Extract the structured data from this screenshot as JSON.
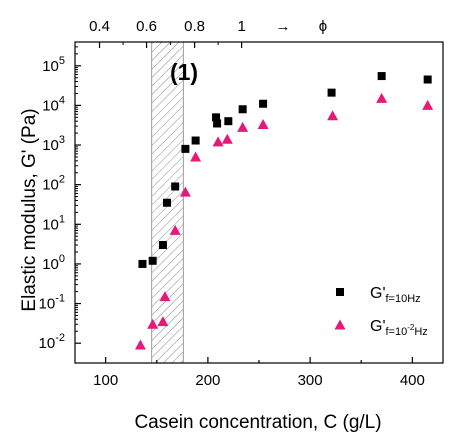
{
  "chart_data": {
    "type": "scatter",
    "xlabel": "Casein concentration, C (g/L)",
    "ylabel": "Elastic modulus, G' (Pa)",
    "xlim": [
      70,
      430
    ],
    "ylim_log10": [
      -2.5,
      5.6
    ],
    "y_scale": "log",
    "x_ticks": [
      "100",
      "200",
      "300",
      "400"
    ],
    "y_ticks": [
      {
        "base": "10",
        "exp": "-2"
      },
      {
        "base": "10",
        "exp": "-1"
      },
      {
        "base": "10",
        "exp": "0"
      },
      {
        "base": "10",
        "exp": "1"
      },
      {
        "base": "10",
        "exp": "2"
      },
      {
        "base": "10",
        "exp": "3"
      },
      {
        "base": "10",
        "exp": "4"
      },
      {
        "base": "10",
        "exp": "5"
      }
    ],
    "top_axis": {
      "label": "ϕ",
      "arrow": "→",
      "ticks": [
        {
          "label": "0.4",
          "c": 94
        },
        {
          "label": "0.6",
          "c": 140
        },
        {
          "label": "0.8",
          "c": 187
        },
        {
          "label": "1",
          "c": 233
        }
      ]
    },
    "shaded_region": {
      "x": [
        145,
        176
      ],
      "label": "(1)"
    },
    "grid": false,
    "legend_position": "right",
    "series": [
      {
        "legend_main": "G'",
        "legend_sub": "f=10Hz",
        "marker": "square",
        "color": "#000000",
        "points": [
          [
            136,
            1.0
          ],
          [
            146,
            1.2
          ],
          [
            156,
            3.0
          ],
          [
            160,
            35
          ],
          [
            168,
            90
          ],
          [
            178,
            800
          ],
          [
            188,
            1300
          ],
          [
            208,
            5000
          ],
          [
            209,
            3500
          ],
          [
            220,
            4000
          ],
          [
            234,
            8000
          ],
          [
            254,
            11000
          ],
          [
            321,
            21000
          ],
          [
            370,
            55000
          ],
          [
            415,
            45000
          ]
        ]
      },
      {
        "legend_main": "G'",
        "legend_sub": "f=10",
        "legend_sub_exp": "-2",
        "legend_sub_tail": "Hz",
        "marker": "triangle",
        "color": "#e6187a",
        "points": [
          [
            134,
            0.009
          ],
          [
            146,
            0.03
          ],
          [
            156,
            0.035
          ],
          [
            158,
            0.15
          ],
          [
            168,
            7
          ],
          [
            178,
            65
          ],
          [
            188,
            500
          ],
          [
            210,
            1200
          ],
          [
            219,
            1400
          ],
          [
            234,
            2800
          ],
          [
            254,
            3300
          ],
          [
            322,
            5500
          ],
          [
            370,
            15000
          ],
          [
            415,
            10000
          ]
        ]
      }
    ]
  }
}
